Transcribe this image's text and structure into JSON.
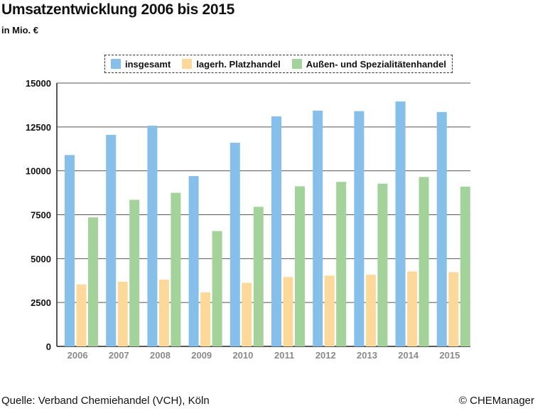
{
  "header": {
    "title": "Umsatzentwicklung 2006 bis 2015",
    "subtitle": "in Mio. €"
  },
  "footer": {
    "source": "Quelle: Verband Chemiehandel (VCH), Köln",
    "copyright": "© CHEManager"
  },
  "colors": {
    "insgesamt": "#86bfe9",
    "platzhandel": "#fcd89a",
    "aussen": "#a3d29a",
    "grid": "#555555",
    "tick": "#8a8a8a"
  },
  "chart_data": {
    "type": "bar",
    "title": "Umsatzentwicklung 2006 bis 2015",
    "subtitle": "in Mio. €",
    "xlabel": "",
    "ylabel": "",
    "ylim": [
      0,
      15000
    ],
    "yticks": [
      "0",
      "2500",
      "5000",
      "7500",
      "10000",
      "12500",
      "15000"
    ],
    "grid": true,
    "legend_position": "top",
    "categories": [
      "2006",
      "2007",
      "2008",
      "2009",
      "2010",
      "2011",
      "2012",
      "2013",
      "2014",
      "2015"
    ],
    "series": [
      {
        "name": "insgesamt",
        "values": [
          10900,
          12050,
          12570,
          9700,
          11600,
          13100,
          13430,
          13400,
          13950,
          13350
        ]
      },
      {
        "name": "lagerh. Platzhandel",
        "values": [
          3530,
          3680,
          3800,
          3080,
          3620,
          3950,
          4030,
          4080,
          4270,
          4230
        ]
      },
      {
        "name": "Außen- und Spezialitätenhandel",
        "values": [
          7350,
          8350,
          8750,
          6570,
          7950,
          9120,
          9370,
          9270,
          9650,
          9100
        ]
      }
    ]
  }
}
